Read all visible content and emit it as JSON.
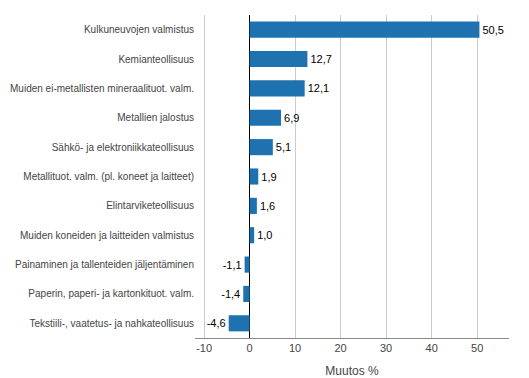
{
  "chart_data": {
    "type": "bar",
    "orientation": "horizontal",
    "categories": [
      "Tekstiili-, vaatetus- ja nahkateollisuus",
      "Paperin, paperi- ja kartonkituot. valm.",
      "Painaminen ja tallenteiden jäljentäminen",
      "Muiden koneiden ja laitteiden valmistus",
      "Elintarviketeollisuus",
      "Metallituot. valm. (pl. koneet ja laitteet)",
      "Sähkö- ja elektroniikkateollisuus",
      "Metallien jalostus",
      "Muiden ei-metallisten mineraalituot. valm.",
      "Kemianteollisuus",
      "Kulkuneuvojen valmistus"
    ],
    "values": [
      -4.6,
      -1.4,
      -1.1,
      1.0,
      1.6,
      1.9,
      5.1,
      6.9,
      12.1,
      12.7,
      50.5
    ],
    "value_labels": [
      "-4,6",
      "-1,4",
      "-1,1",
      "1,0",
      "1,6",
      "1,9",
      "5,1",
      "6,9",
      "12,1",
      "12,7",
      "50,5"
    ],
    "color": "#1f72b0",
    "xlabel": "Muutos %",
    "xlim": [
      -12,
      57
    ],
    "xticks": [
      -10,
      0,
      10,
      20,
      30,
      40,
      50
    ],
    "grid": true,
    "data_labels": true
  }
}
